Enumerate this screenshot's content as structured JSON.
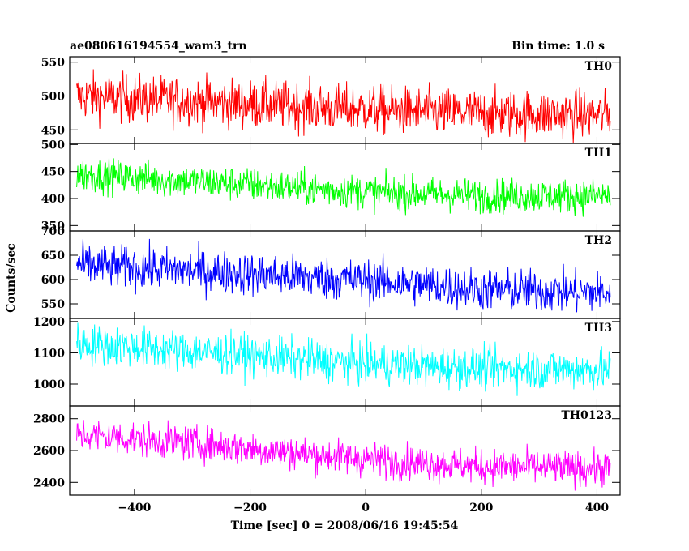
{
  "chart_data": {
    "type": "line",
    "title_left": "ae080616194554_wam3_trn",
    "title_right": "Bin time: 1.0 s",
    "xlabel": "Time [sec] 0 = 2008/06/16 19:45:54",
    "ylabel": "Counts/sec",
    "xlim": [
      -512,
      440
    ],
    "x_ticks": [
      -400,
      -200,
      0,
      200,
      400
    ],
    "x_tick_labels": [
      "−400",
      "−200",
      "0",
      "200",
      "400"
    ],
    "grid": false,
    "x_range": [
      -500,
      423
    ],
    "panels": [
      {
        "name": "TH0",
        "color": "#ff0000",
        "ylim": [
          430,
          558
        ],
        "yticks": [
          450,
          500,
          550
        ],
        "trend": [
          [
            -500,
            500
          ],
          [
            -300,
            492
          ],
          [
            0,
            480
          ],
          [
            200,
            474
          ],
          [
            423,
            472
          ]
        ],
        "noise": 18
      },
      {
        "name": "TH1",
        "color": "#00ff00",
        "ylim": [
          340,
          502
        ],
        "yticks": [
          350,
          400,
          450,
          500
        ],
        "trend": [
          [
            -500,
            445
          ],
          [
            -300,
            432
          ],
          [
            0,
            412
          ],
          [
            200,
            405
          ],
          [
            423,
            405
          ]
        ],
        "noise": 16
      },
      {
        "name": "TH2",
        "color": "#0000ff",
        "ylim": [
          520,
          700
        ],
        "yticks": [
          550,
          600,
          650,
          700
        ],
        "trend": [
          [
            -500,
            630
          ],
          [
            -300,
            618
          ],
          [
            0,
            598
          ],
          [
            200,
            580
          ],
          [
            423,
            572
          ]
        ],
        "noise": 22
      },
      {
        "name": "TH3",
        "color": "#00ffff",
        "ylim": [
          930,
          1210
        ],
        "yticks": [
          1000,
          1100,
          1200
        ],
        "trend": [
          [
            -500,
            1130
          ],
          [
            -300,
            1105
          ],
          [
            0,
            1065
          ],
          [
            200,
            1050
          ],
          [
            423,
            1045
          ]
        ],
        "noise": 33
      },
      {
        "name": "TH0123",
        "color": "#ff00ff",
        "ylim": [
          2320,
          2880
        ],
        "yticks": [
          2400,
          2600,
          2800
        ],
        "trend": [
          [
            -500,
            2700
          ],
          [
            -300,
            2645
          ],
          [
            0,
            2545
          ],
          [
            200,
            2500
          ],
          [
            423,
            2485
          ]
        ],
        "noise": 55
      }
    ]
  }
}
